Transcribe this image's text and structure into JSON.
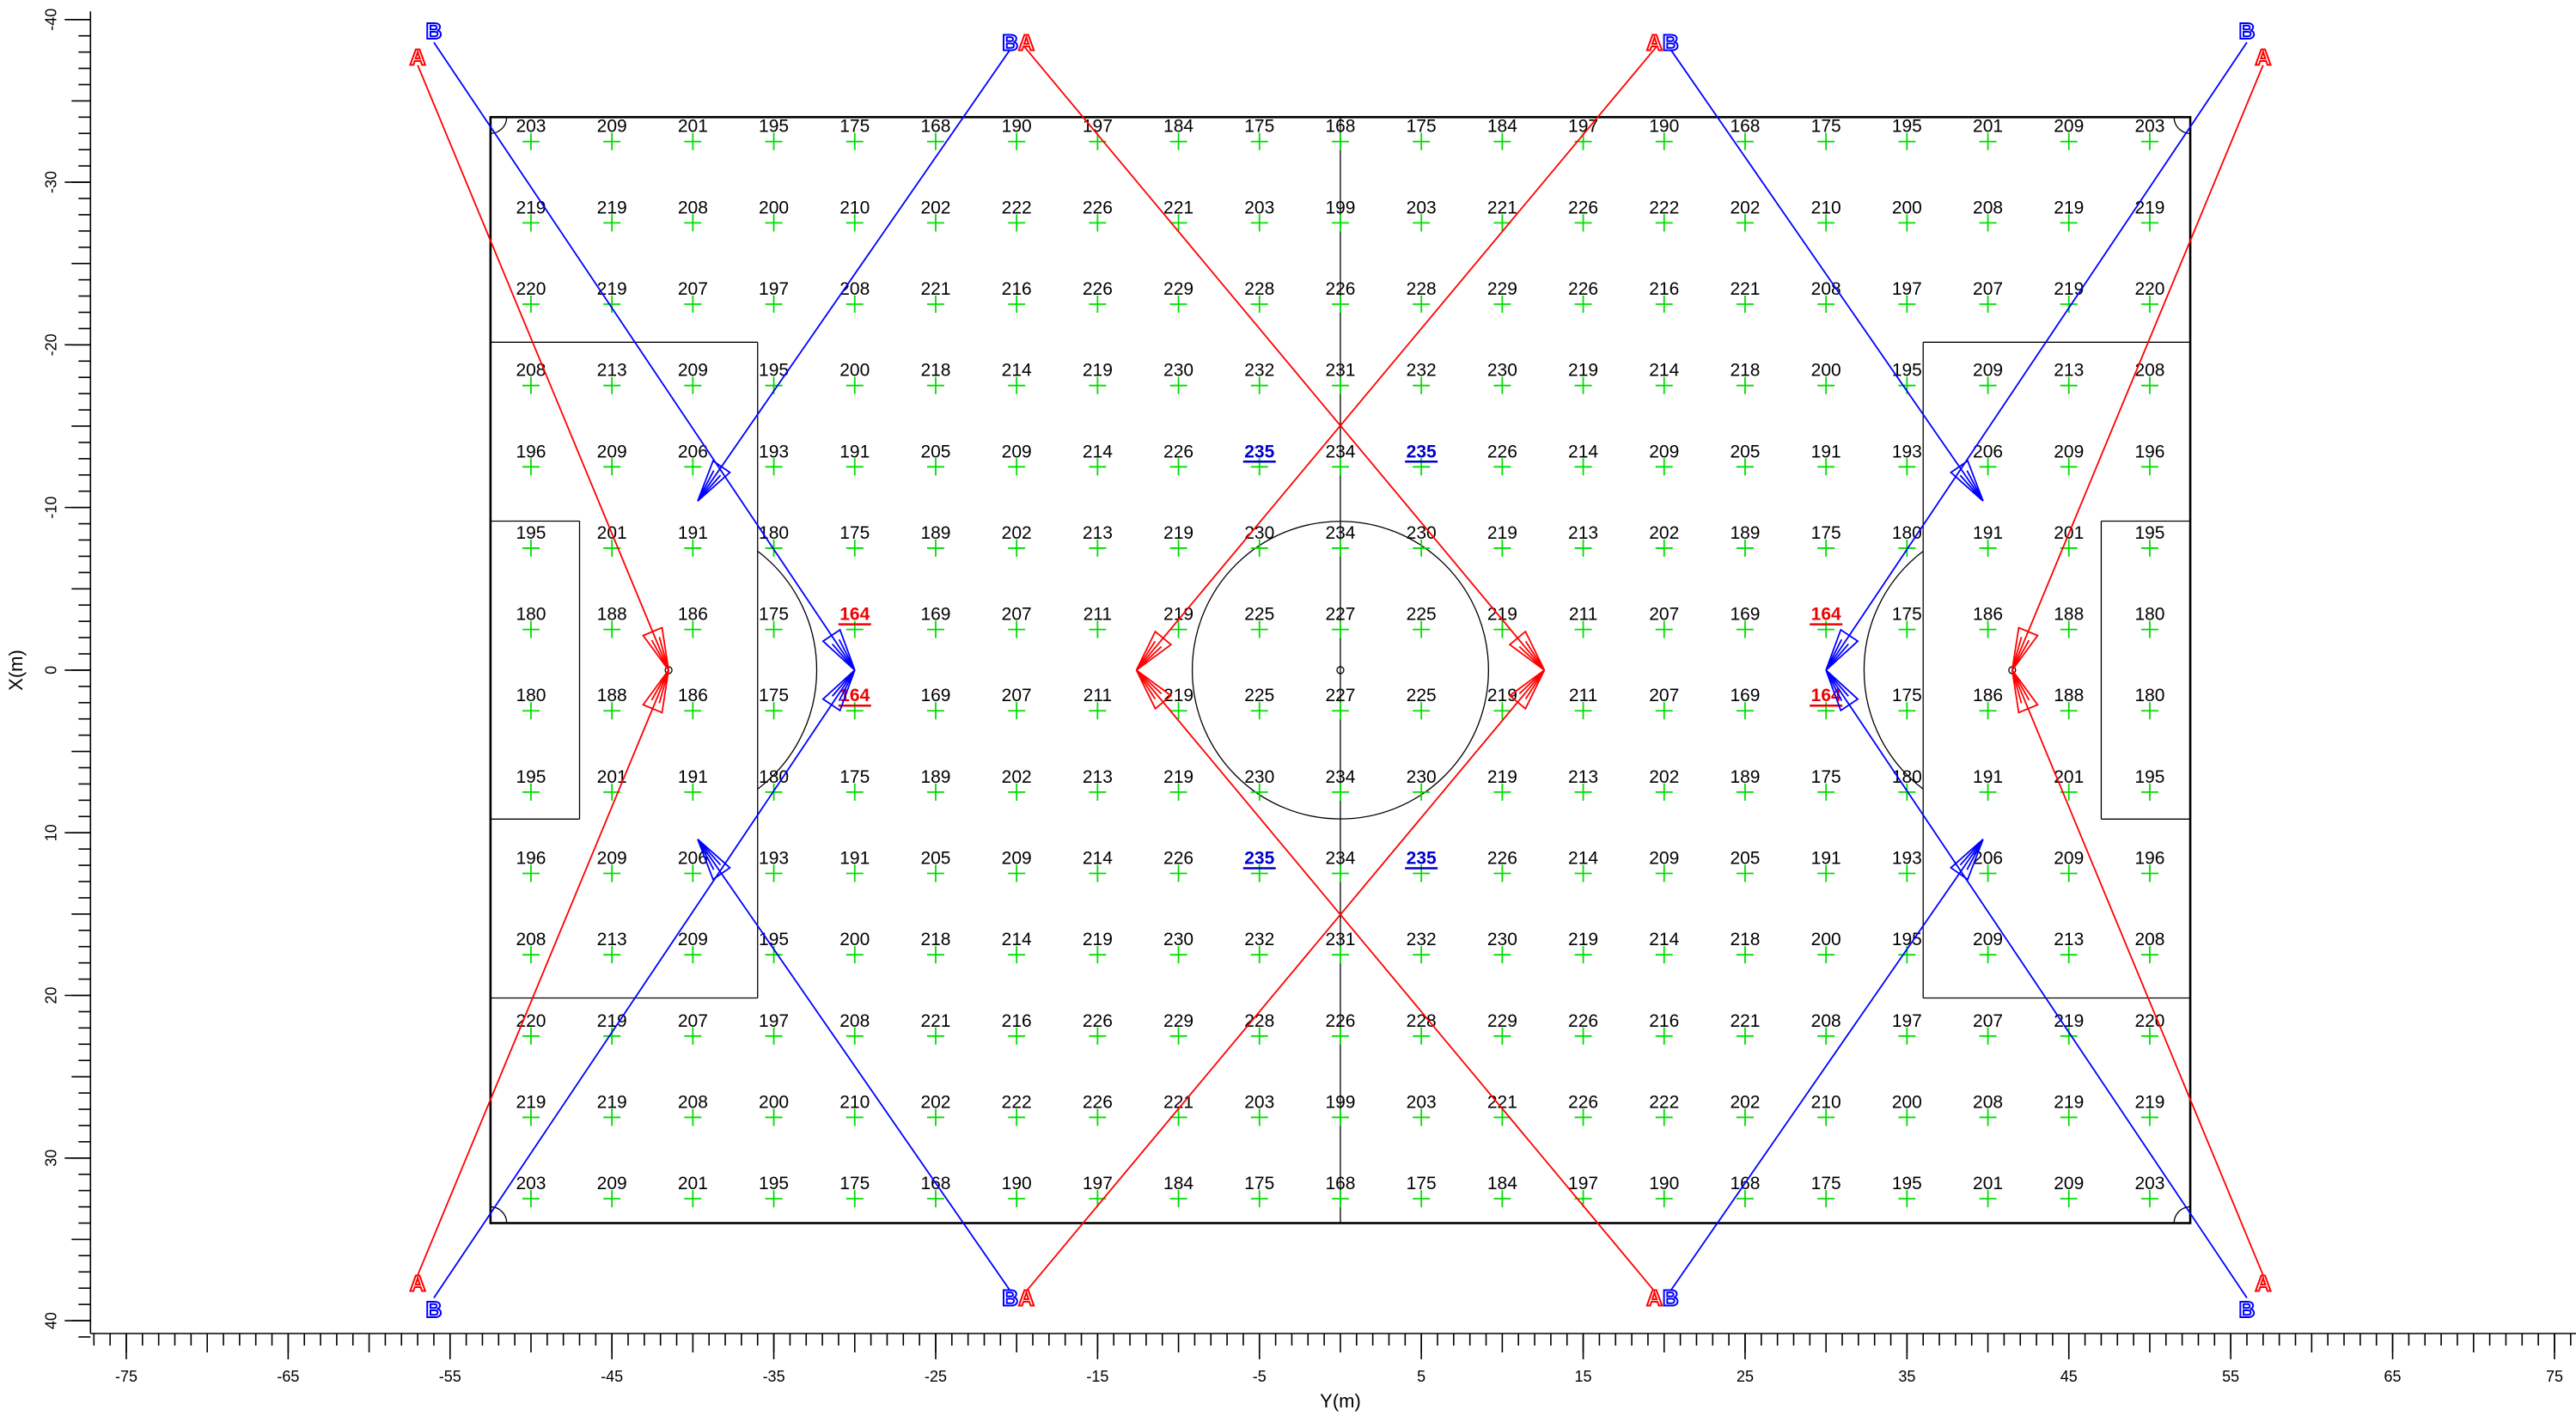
{
  "chart_data": {
    "type": "grid",
    "xlabel": "Y(m)",
    "ylabel": "X(m)",
    "xlim": [
      -77,
      76
    ],
    "ylim": [
      -40.5,
      41
    ],
    "y_reversed": true,
    "xticks": [
      -75,
      -65,
      -55,
      -45,
      -35,
      -25,
      -15,
      -5,
      5,
      15,
      25,
      35,
      45,
      55,
      65,
      75
    ],
    "yticks": [
      -40,
      -30,
      -20,
      -10,
      0,
      10,
      20,
      30,
      40
    ],
    "minor_tick_step": 1,
    "x": [
      -50,
      -45,
      -40,
      -35,
      -30,
      -25,
      -20,
      -15,
      -10,
      -5,
      0,
      5,
      10,
      15,
      20,
      25,
      30,
      35,
      40,
      45,
      50
    ],
    "y": [
      -32.5,
      -27.5,
      -22.5,
      -17.5,
      -12.5,
      -7.5,
      -2.5,
      2.5,
      7.5,
      12.5,
      17.5,
      22.5,
      27.5,
      32.5
    ],
    "values": [
      [
        203,
        209,
        201,
        195,
        175,
        168,
        190,
        197,
        184,
        175,
        168,
        175,
        184,
        197,
        190,
        168,
        175,
        195,
        201,
        209,
        203
      ],
      [
        219,
        219,
        208,
        200,
        210,
        202,
        222,
        226,
        221,
        203,
        199,
        203,
        221,
        226,
        222,
        202,
        210,
        200,
        208,
        219,
        219
      ],
      [
        220,
        219,
        207,
        197,
        208,
        221,
        216,
        226,
        229,
        228,
        226,
        228,
        229,
        226,
        216,
        221,
        208,
        197,
        207,
        219,
        220
      ],
      [
        208,
        213,
        209,
        195,
        200,
        218,
        214,
        219,
        230,
        232,
        231,
        232,
        230,
        219,
        214,
        218,
        200,
        195,
        209,
        213,
        208
      ],
      [
        196,
        209,
        206,
        193,
        191,
        205,
        209,
        214,
        226,
        235,
        234,
        235,
        226,
        214,
        209,
        205,
        191,
        193,
        206,
        209,
        196
      ],
      [
        195,
        201,
        191,
        180,
        175,
        189,
        202,
        213,
        219,
        230,
        234,
        230,
        219,
        213,
        202,
        189,
        175,
        180,
        191,
        201,
        195
      ],
      [
        180,
        188,
        186,
        175,
        164,
        169,
        207,
        211,
        219,
        225,
        227,
        225,
        219,
        211,
        207,
        169,
        164,
        175,
        186,
        188,
        180
      ],
      [
        180,
        188,
        186,
        175,
        164,
        169,
        207,
        211,
        219,
        225,
        227,
        225,
        219,
        211,
        207,
        169,
        164,
        175,
        186,
        188,
        180
      ],
      [
        195,
        201,
        191,
        180,
        175,
        189,
        202,
        213,
        219,
        230,
        234,
        230,
        219,
        213,
        202,
        189,
        175,
        180,
        191,
        201,
        195
      ],
      [
        196,
        209,
        206,
        193,
        191,
        205,
        209,
        214,
        226,
        235,
        234,
        235,
        226,
        214,
        209,
        205,
        191,
        193,
        206,
        209,
        196
      ],
      [
        208,
        213,
        209,
        195,
        200,
        218,
        214,
        219,
        230,
        232,
        231,
        232,
        230,
        219,
        214,
        218,
        200,
        195,
        209,
        213,
        208
      ],
      [
        220,
        219,
        207,
        197,
        208,
        221,
        216,
        226,
        229,
        228,
        226,
        228,
        229,
        226,
        216,
        221,
        208,
        197,
        207,
        219,
        220
      ],
      [
        219,
        219,
        208,
        200,
        210,
        202,
        222,
        226,
        221,
        203,
        199,
        203,
        221,
        226,
        222,
        202,
        210,
        200,
        208,
        219,
        219
      ],
      [
        203,
        209,
        201,
        195,
        175,
        168,
        190,
        197,
        184,
        175,
        168,
        175,
        184,
        197,
        190,
        168,
        175,
        195,
        201,
        209,
        203
      ]
    ],
    "point_color": "#00dd00",
    "text_color": "#000000",
    "min_color": "#ee0000",
    "max_color": "#0000cc",
    "groups": [
      {
        "name": "A",
        "color": "#ff0000"
      },
      {
        "name": "B",
        "color": "#0000ff"
      }
    ]
  }
}
